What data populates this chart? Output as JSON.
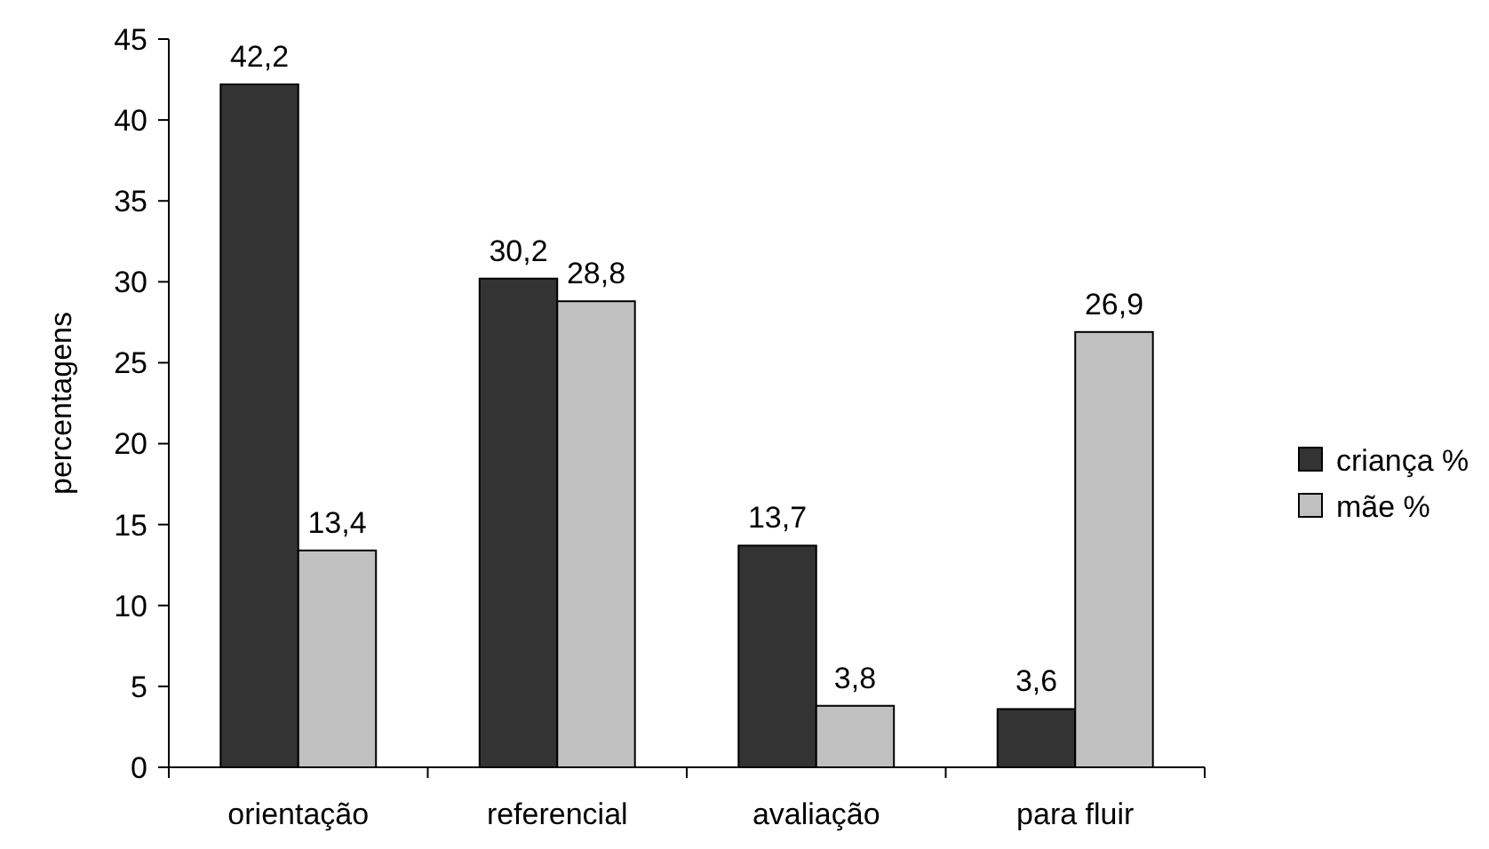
{
  "chart_data": {
    "type": "bar",
    "ylabel": "percentagens",
    "categories": [
      "orientação",
      "referencial",
      "avaliação",
      "para fluir"
    ],
    "series": [
      {
        "name": "criança %",
        "color": "#333333",
        "values": [
          42.2,
          30.2,
          13.7,
          3.6
        ],
        "value_labels": [
          "42,2",
          "30,2",
          "13,7",
          "3,6"
        ]
      },
      {
        "name": "mãe %",
        "color": "#c0c0c0",
        "values": [
          13.4,
          28.8,
          3.8,
          26.9
        ],
        "value_labels": [
          "13,4",
          "28,8",
          "3,8",
          "26,9"
        ]
      }
    ],
    "ylim": [
      0,
      45
    ],
    "yticks": [
      0,
      5,
      10,
      15,
      20,
      25,
      30,
      35,
      40,
      45
    ],
    "grid": false,
    "legend": "right"
  }
}
